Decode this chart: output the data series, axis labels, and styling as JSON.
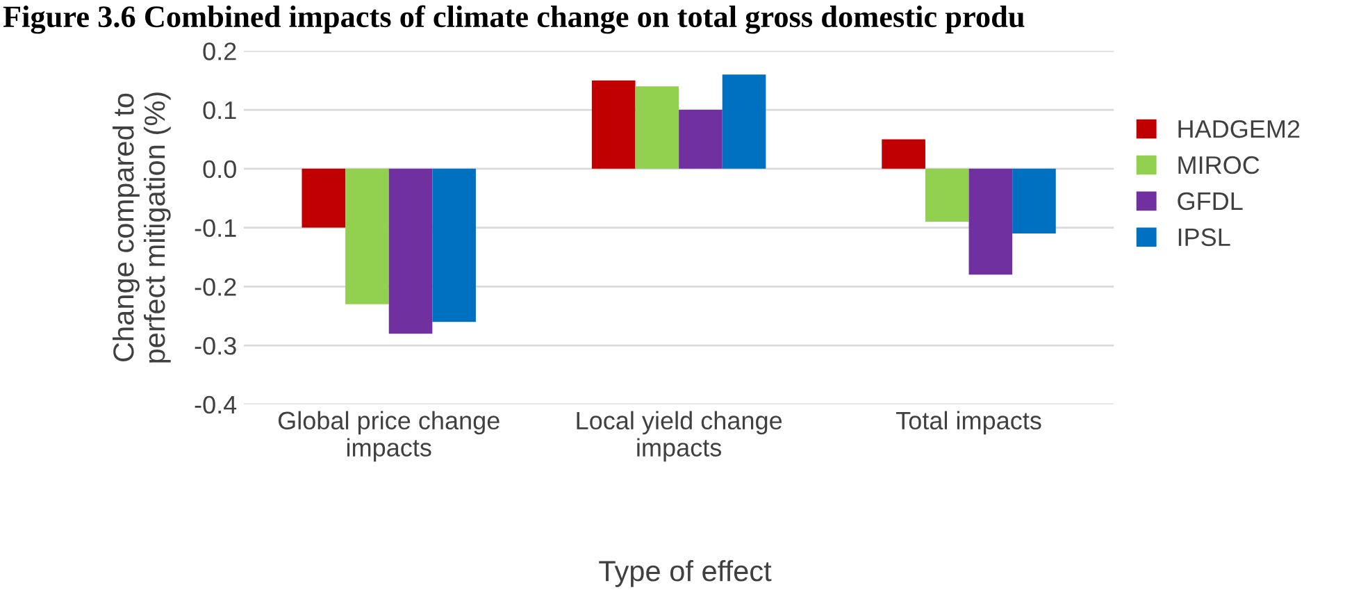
{
  "chart_data": {
    "type": "bar",
    "title": "Figure 3.6 Combined impacts of climate change on total gross domestic produ",
    "xlabel": "Type of effect",
    "ylabel": "Change compared to\nperfect mitigation (%)",
    "categories": [
      "Global price change\nimpacts",
      "Local yield change\nimpacts",
      "Total impacts"
    ],
    "series": [
      {
        "name": "HADGEM2",
        "color": "#c00000",
        "values": [
          -0.1,
          0.15,
          0.05
        ]
      },
      {
        "name": "MIROC",
        "color": "#92d050",
        "values": [
          -0.23,
          0.14,
          -0.09
        ]
      },
      {
        "name": "GFDL",
        "color": "#7030a0",
        "values": [
          -0.28,
          0.1,
          -0.18
        ]
      },
      {
        "name": "IPSL",
        "color": "#0070c0",
        "values": [
          -0.26,
          0.16,
          -0.11
        ]
      }
    ],
    "ylim": [
      -0.4,
      0.2
    ],
    "yticks": [
      -0.4,
      -0.3,
      -0.2,
      -0.1,
      {
        "value": 0,
        "label": "0.0"
      },
      0.1,
      0.2
    ],
    "grid": "y",
    "legend": "right"
  }
}
